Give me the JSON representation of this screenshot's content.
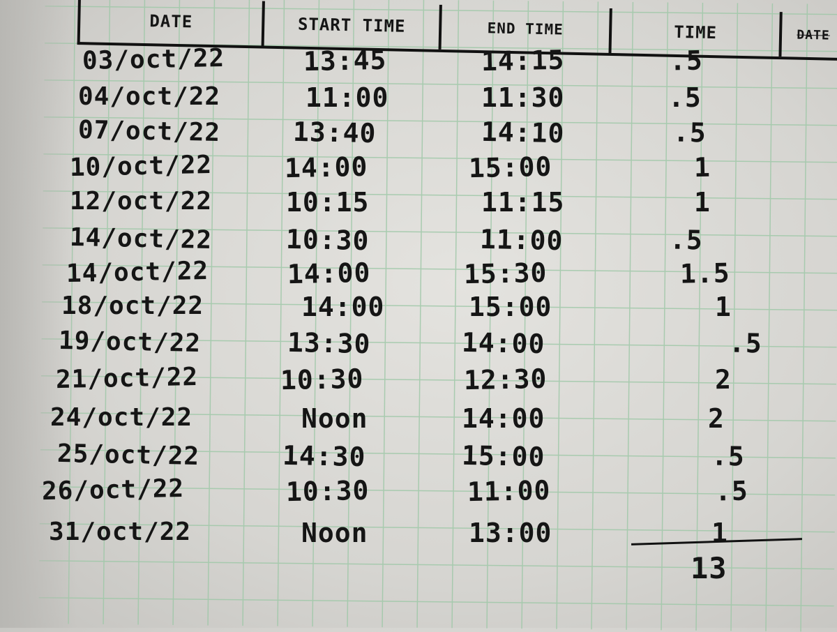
{
  "headers": {
    "date": "DATE",
    "start": "START TIME",
    "end": "END TIME",
    "time": "TIME",
    "next": "DATE"
  },
  "rows": [
    {
      "date": "03/oct/22",
      "start": "13:45",
      "end": "14:15",
      "time": ".5"
    },
    {
      "date": "04/oct/22",
      "start": "11:00",
      "end": "11:30",
      "time": ".5"
    },
    {
      "date": "07/oct/22",
      "start": "13:40",
      "end": "14:10",
      "time": ".5"
    },
    {
      "date": "10/oct/22",
      "start": "14:00",
      "end": "15:00",
      "time": "1"
    },
    {
      "date": "12/oct/22",
      "start": "10:15",
      "end": "11:15",
      "time": "1"
    },
    {
      "date": "14/oct/22",
      "start": "10:30",
      "end": "11:00",
      "time": ".5"
    },
    {
      "date": "14/oct/22",
      "start": "14:00",
      "end": "15:30",
      "time": "1.5"
    },
    {
      "date": "18/oct/22",
      "start": "14:00",
      "end": "15:00",
      "time": "1"
    },
    {
      "date": "19/oct/22",
      "start": "13:30",
      "end": "14:00",
      "time": ".5"
    },
    {
      "date": "21/oct/22",
      "start": "10:30",
      "end": "12:30",
      "time": "2"
    },
    {
      "date": "24/oct/22",
      "start": "Noon",
      "end": "14:00",
      "time": "2"
    },
    {
      "date": "25/oct/22",
      "start": "14:30",
      "end": "15:00",
      "time": ".5"
    },
    {
      "date": "26/oct/22",
      "start": "10:30",
      "end": "11:00",
      "time": ".5"
    },
    {
      "date": "31/oct/22",
      "start": "Noon",
      "end": "13:00",
      "time": "1"
    }
  ],
  "total": "13"
}
